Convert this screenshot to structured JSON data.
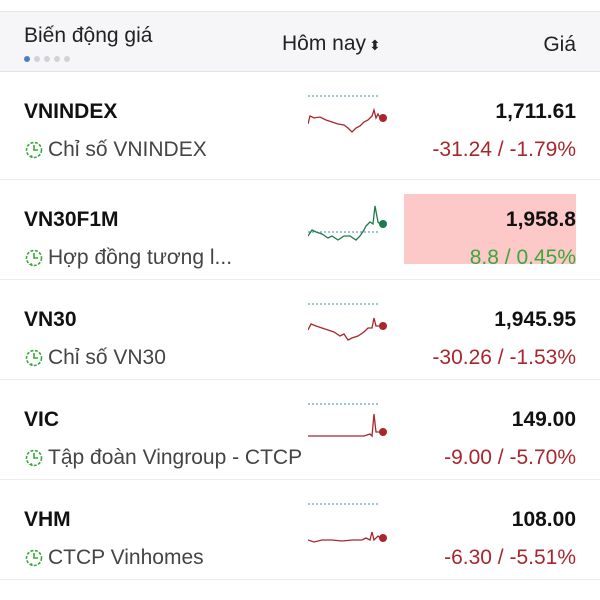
{
  "header": {
    "title": "Biến động giá",
    "period": "Hôm nay",
    "sort_icon": "sort-icon",
    "price": "Giá",
    "page_dots": 5,
    "active_dot": 0
  },
  "colors": {
    "down": "#a8272e",
    "up": "#3aa83a",
    "up_line": "#1e7a4a",
    "highlight": "#fcc8c8",
    "ref_line": "#3a8fa0"
  },
  "rows": [
    {
      "symbol": "VNINDEX",
      "name": "Chỉ số VNINDEX",
      "price": "1,711.61",
      "change": "-31.24 / -1.79%",
      "trend": "down",
      "highlight": false
    },
    {
      "symbol": "VN30F1M",
      "name": "Hợp đồng tương l...",
      "price": "1,958.8",
      "change": "8.8 / 0.45%",
      "trend": "up",
      "highlight": true
    },
    {
      "symbol": "VN30",
      "name": "Chỉ số VN30",
      "price": "1,945.95",
      "change": "-30.26 / -1.53%",
      "trend": "down",
      "highlight": false
    },
    {
      "symbol": "VIC",
      "name": "Tập đoàn Vingroup - CTCP",
      "price": "149.00",
      "change": "-9.00 / -5.70%",
      "trend": "down",
      "highlight": false
    },
    {
      "symbol": "VHM",
      "name": "CTCP Vinhomes",
      "price": "108.00",
      "change": "-6.30 / -5.51%",
      "trend": "down",
      "highlight": false
    }
  ]
}
